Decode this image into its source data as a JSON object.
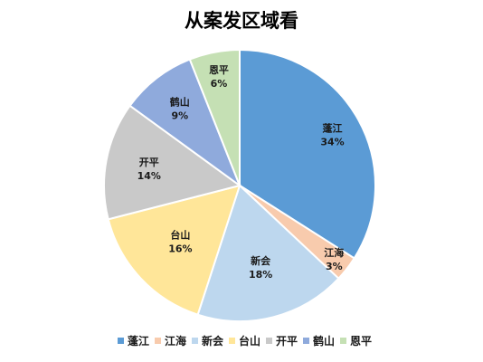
{
  "chart_data": {
    "type": "pie",
    "title": "从案发区域看",
    "categories": [
      "蓬江",
      "江海",
      "新会",
      "台山",
      "开平",
      "鹤山",
      "恩平"
    ],
    "values": [
      34,
      3,
      18,
      16,
      14,
      9,
      6
    ],
    "value_labels": [
      "34%",
      "3%",
      "18%",
      "16%",
      "14%",
      "9%",
      "6%"
    ],
    "colors": [
      "#5b9bd5",
      "#f8cbad",
      "#bdd7ee",
      "#ffe699",
      "#c9c9c9",
      "#8faadc",
      "#c5e0b4"
    ],
    "start_angle": "top, clockwise",
    "legend_position": "bottom"
  }
}
